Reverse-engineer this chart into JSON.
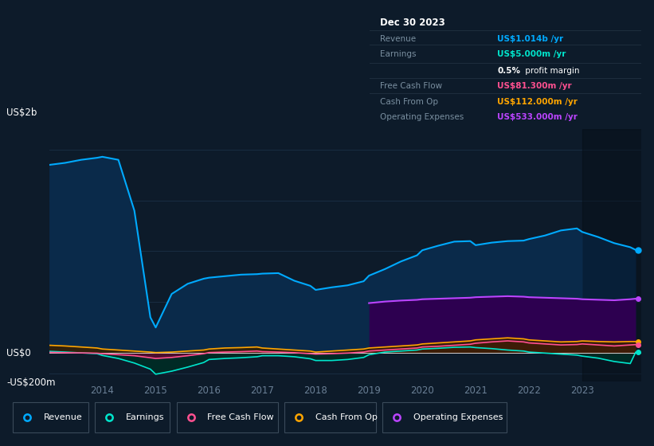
{
  "bg_color": "#0d1b2a",
  "plot_bg_color": "#0d1b2a",
  "grid_color": "#1e3048",
  "years": [
    2013.0,
    2013.3,
    2013.6,
    2013.9,
    2014.0,
    2014.3,
    2014.6,
    2014.9,
    2015.0,
    2015.3,
    2015.6,
    2015.9,
    2016.0,
    2016.3,
    2016.6,
    2016.9,
    2017.0,
    2017.3,
    2017.6,
    2017.9,
    2018.0,
    2018.3,
    2018.6,
    2018.9,
    2019.0,
    2019.3,
    2019.6,
    2019.9,
    2020.0,
    2020.3,
    2020.6,
    2020.9,
    2021.0,
    2021.3,
    2021.6,
    2021.9,
    2022.0,
    2022.3,
    2022.6,
    2022.9,
    2023.0,
    2023.3,
    2023.6,
    2023.9,
    2024.0
  ],
  "revenue": [
    1850,
    1870,
    1900,
    1920,
    1930,
    1900,
    1400,
    350,
    250,
    580,
    680,
    730,
    740,
    755,
    770,
    775,
    780,
    785,
    710,
    660,
    620,
    645,
    665,
    705,
    760,
    825,
    900,
    960,
    1010,
    1055,
    1095,
    1100,
    1060,
    1085,
    1100,
    1105,
    1120,
    1155,
    1205,
    1225,
    1190,
    1140,
    1080,
    1040,
    1014
  ],
  "earnings": [
    15,
    8,
    0,
    -8,
    -25,
    -55,
    -100,
    -160,
    -210,
    -180,
    -140,
    -95,
    -65,
    -55,
    -48,
    -38,
    -28,
    -28,
    -38,
    -58,
    -75,
    -75,
    -65,
    -45,
    -18,
    8,
    18,
    28,
    38,
    45,
    55,
    58,
    52,
    42,
    28,
    18,
    8,
    -2,
    -12,
    -22,
    -32,
    -52,
    -85,
    -105,
    5
  ],
  "free_cash_flow": [
    5,
    2,
    0,
    -3,
    -8,
    -18,
    -28,
    -48,
    -55,
    -45,
    -28,
    -8,
    3,
    8,
    12,
    18,
    12,
    8,
    2,
    -8,
    -12,
    -8,
    -2,
    8,
    18,
    28,
    38,
    48,
    58,
    65,
    75,
    85,
    95,
    108,
    118,
    108,
    98,
    88,
    78,
    82,
    88,
    78,
    68,
    78,
    81.3
  ],
  "cash_from_op": [
    75,
    68,
    58,
    48,
    38,
    28,
    18,
    8,
    3,
    8,
    18,
    28,
    38,
    48,
    52,
    58,
    48,
    38,
    28,
    18,
    8,
    18,
    28,
    38,
    48,
    58,
    68,
    78,
    88,
    98,
    108,
    118,
    128,
    138,
    148,
    138,
    128,
    118,
    108,
    112,
    118,
    112,
    108,
    112,
    112
  ],
  "operating_expenses": [
    null,
    null,
    null,
    null,
    null,
    null,
    null,
    null,
    null,
    null,
    null,
    null,
    null,
    null,
    null,
    null,
    null,
    null,
    null,
    null,
    null,
    null,
    null,
    null,
    490,
    505,
    515,
    522,
    528,
    533,
    538,
    543,
    548,
    553,
    558,
    553,
    548,
    543,
    538,
    533,
    528,
    523,
    518,
    528,
    533
  ],
  "revenue_color": "#00aaff",
  "revenue_fill": "#0a2a4a",
  "earnings_color": "#00e5cc",
  "earnings_fill": "#002a25",
  "free_cash_flow_color": "#ff5090",
  "free_cash_flow_fill": "#5a0a30",
  "cash_from_op_color": "#ffa500",
  "cash_from_op_fill": "#3a2000",
  "op_expenses_color": "#bb44ff",
  "op_expenses_fill": "#2d0050",
  "infobox_title": "Dec 30 2023",
  "info_revenue_label": "Revenue",
  "info_revenue_value": "US$1.014b",
  "info_earnings_label": "Earnings",
  "info_earnings_value": "US$5.000m",
  "info_margin": "0.5% profit margin",
  "info_fcf_label": "Free Cash Flow",
  "info_fcf_value": "US$81.300m",
  "info_cashop_label": "Cash From Op",
  "info_cashop_value": "US$112.000m",
  "info_opex_label": "Operating Expenses",
  "info_opex_value": "US$533.000m",
  "legend_items": [
    "Revenue",
    "Earnings",
    "Free Cash Flow",
    "Cash From Op",
    "Operating Expenses"
  ],
  "legend_colors": [
    "#00aaff",
    "#00e5cc",
    "#ff5090",
    "#ffa500",
    "#bb44ff"
  ],
  "xticklabels": [
    "2014",
    "2015",
    "2016",
    "2017",
    "2018",
    "2019",
    "2020",
    "2021",
    "2022",
    "2023"
  ],
  "xtick_positions": [
    2014,
    2015,
    2016,
    2017,
    2018,
    2019,
    2020,
    2021,
    2022,
    2023
  ],
  "ylim": [
    -280,
    2200
  ],
  "ytick_labels": [
    "-US$200m",
    "US$0",
    "US$2b"
  ],
  "ytick_values": [
    -200,
    0,
    2000
  ]
}
